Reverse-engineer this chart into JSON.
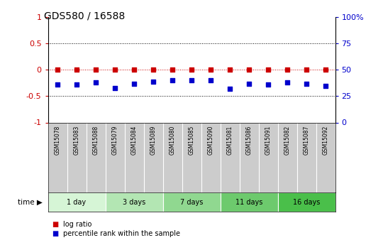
{
  "title": "GDS580 / 16588",
  "samples": [
    "GSM15078",
    "GSM15083",
    "GSM15088",
    "GSM15079",
    "GSM15084",
    "GSM15089",
    "GSM15080",
    "GSM15085",
    "GSM15090",
    "GSM15081",
    "GSM15086",
    "GSM15091",
    "GSM15082",
    "GSM15087",
    "GSM15092"
  ],
  "log_ratio": [
    0,
    0,
    0,
    0,
    0,
    0,
    0,
    0,
    0,
    0,
    0,
    0,
    0,
    0,
    0
  ],
  "pct_rank": [
    36,
    36,
    38,
    33,
    37,
    39,
    40,
    40,
    40,
    32,
    37,
    36,
    38,
    37,
    35
  ],
  "groups": [
    {
      "label": "1 day",
      "start": 0,
      "end": 3,
      "color": "#d6f5d6"
    },
    {
      "label": "3 days",
      "start": 3,
      "end": 6,
      "color": "#b3e6b3"
    },
    {
      "label": "7 days",
      "start": 6,
      "end": 9,
      "color": "#90d890"
    },
    {
      "label": "11 days",
      "start": 9,
      "end": 12,
      "color": "#6dca6d"
    },
    {
      "label": "16 days",
      "start": 12,
      "end": 15,
      "color": "#4abf4a"
    }
  ],
  "ylim_left": [
    -1,
    1
  ],
  "ylim_right": [
    0,
    100
  ],
  "yticks_left": [
    -1,
    -0.5,
    0,
    0.5,
    1
  ],
  "ytick_labels_left": [
    "-1",
    "-0.5",
    "0",
    "0.5",
    "1"
  ],
  "yticks_right": [
    0,
    25,
    50,
    75,
    100
  ],
  "ytick_labels_right": [
    "0",
    "25",
    "50",
    "75",
    "100%"
  ],
  "left_tick_color": "#cc0000",
  "right_tick_color": "#0000cc",
  "dot_color_log": "#cc0000",
  "dot_color_pct": "#0000cc",
  "sample_bg": "#cccccc",
  "legend_items": [
    {
      "label": "log ratio",
      "color": "#cc0000"
    },
    {
      "label": "percentile rank within the sample",
      "color": "#0000cc"
    }
  ],
  "time_label": "time"
}
